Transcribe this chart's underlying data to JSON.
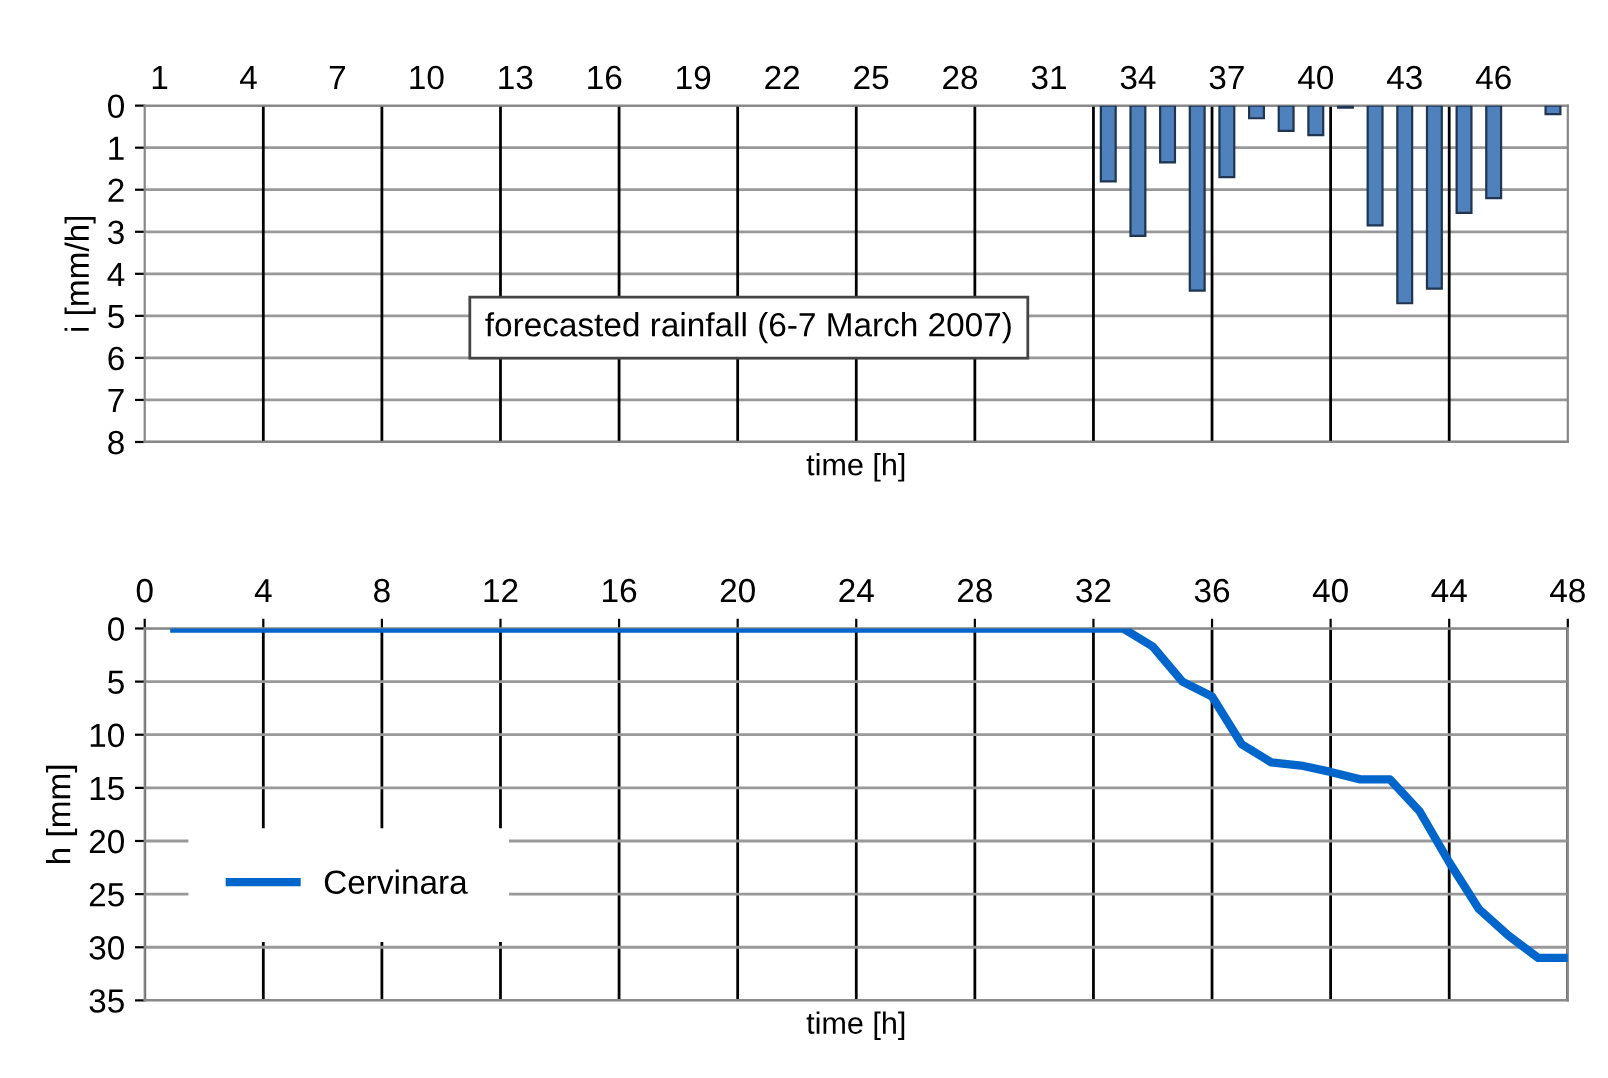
{
  "chart_data": [
    {
      "type": "bar",
      "xlabel": "time [h]",
      "ylabel": "i [mm/h]",
      "categories": [
        "1",
        null,
        null,
        "4",
        null,
        null,
        "7",
        null,
        null,
        "10",
        null,
        null,
        "13",
        null,
        null,
        "16",
        null,
        null,
        "19",
        null,
        null,
        "22",
        null,
        null,
        "25",
        null,
        null,
        "28",
        null,
        null,
        "31",
        null,
        null,
        "34",
        null,
        null,
        "37",
        null,
        null,
        "40",
        null,
        null,
        "43",
        null,
        null,
        "46",
        null,
        null
      ],
      "series": [
        {
          "color": "#4f81bd",
          "values": [
            0,
            0,
            0,
            0,
            0,
            0,
            0,
            0,
            0,
            0,
            0,
            0,
            0,
            0,
            0,
            0,
            0,
            0,
            0,
            0,
            0,
            0,
            0,
            0,
            0,
            0,
            0,
            0,
            0,
            0,
            0,
            0,
            1.8,
            3.1,
            1.35,
            4.4,
            1.7,
            0.3,
            0.6,
            0.7,
            0.05,
            2.85,
            4.7,
            4.35,
            2.55,
            2.2,
            0,
            0.2
          ]
        }
      ],
      "ylim": [
        8,
        0
      ],
      "yticks": [
        0,
        1,
        2,
        3,
        4,
        5,
        6,
        7,
        8
      ],
      "grid": true,
      "legend": false,
      "annotations": [
        "forecasted rainfall (6-7 March 2007)"
      ]
    },
    {
      "type": "line",
      "xlabel": "time [h]",
      "ylabel": "h [mm]",
      "xlim": [
        0,
        48
      ],
      "xticks": [
        0,
        4,
        8,
        12,
        16,
        20,
        24,
        28,
        32,
        36,
        40,
        44,
        48
      ],
      "ylim": [
        35,
        0
      ],
      "yticks": [
        0,
        5,
        10,
        15,
        20,
        25,
        30,
        35
      ],
      "grid": true,
      "legend": "left",
      "marker": "none",
      "line_style": "solid",
      "series": [
        {
          "name": "Cervinara",
          "color": "#0066cc",
          "x": [
            1,
            33,
            34,
            35,
            36,
            37,
            38,
            39,
            40,
            41,
            42,
            43,
            44,
            45,
            46,
            47,
            48
          ],
          "values": [
            0,
            0,
            1.7,
            5,
            6.4,
            10.9,
            12.6,
            12.9,
            13.5,
            14.2,
            14.2,
            17.2,
            22,
            26.4,
            28.9,
            31,
            31
          ]
        }
      ]
    }
  ]
}
